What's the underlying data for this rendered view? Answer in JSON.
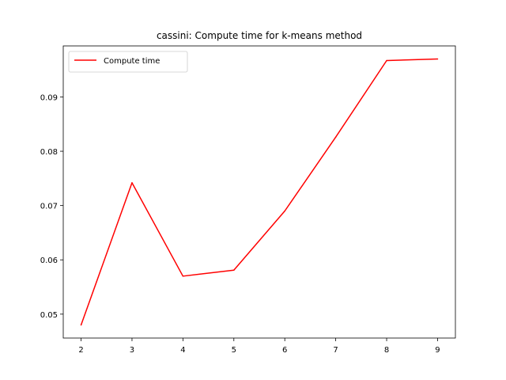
{
  "chart_data": {
    "type": "line",
    "title": "cassini: Compute time for k-means method",
    "xlabel": "",
    "ylabel": "",
    "x": [
      2,
      3,
      4,
      5,
      6,
      7,
      8,
      9
    ],
    "series": [
      {
        "name": "Compute time",
        "color": "#ff0000",
        "values": [
          0.048,
          0.0742,
          0.057,
          0.0581,
          0.069,
          0.0826,
          0.0967,
          0.097
        ]
      }
    ],
    "xlim": [
      1.65,
      9.35
    ],
    "ylim": [
      0.0456,
      0.0994
    ],
    "x_ticks": [
      "2",
      "3",
      "4",
      "5",
      "6",
      "7",
      "8",
      "9"
    ],
    "y_ticks": [
      "0.05",
      "0.06",
      "0.07",
      "0.08",
      "0.09"
    ],
    "grid": false,
    "legend_position": "upper-left"
  }
}
